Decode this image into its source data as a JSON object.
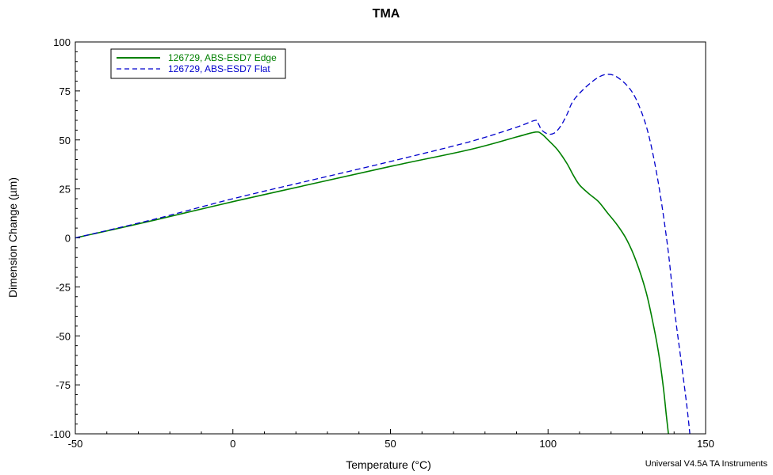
{
  "chart_data": {
    "type": "line",
    "title": "TMA",
    "xlabel": "Temperature (°C)",
    "ylabel": "Dimension Change (µm)",
    "xlim": [
      -50,
      150
    ],
    "ylim": [
      -100,
      100
    ],
    "x_ticks": [
      -50,
      0,
      50,
      100,
      150
    ],
    "y_ticks": [
      100,
      75,
      50,
      25,
      0,
      -25,
      -50,
      -75,
      -100
    ],
    "x_tick_labels": [
      "-50",
      "0",
      "50",
      "100",
      "150"
    ],
    "y_tick_labels": [
      "100",
      "75",
      "50",
      "25",
      "0",
      "-25",
      "-50",
      "-75",
      "-100"
    ],
    "grid": false,
    "legend_position": "top-left",
    "series": [
      {
        "name": "126729, ABS-ESD7 Edge",
        "color": "#008000",
        "style": "solid",
        "points": [
          [
            -50,
            0
          ],
          [
            -25,
            9
          ],
          [
            0,
            18.5
          ],
          [
            25,
            27.5
          ],
          [
            50,
            36.5
          ],
          [
            75,
            45
          ],
          [
            90,
            51.5
          ],
          [
            96,
            54
          ],
          [
            98,
            53
          ],
          [
            100,
            50
          ],
          [
            103,
            45
          ],
          [
            106,
            38
          ],
          [
            108,
            32
          ],
          [
            110,
            27
          ],
          [
            113,
            22.5
          ],
          [
            116,
            18.5
          ],
          [
            119,
            12.5
          ],
          [
            122,
            6.5
          ],
          [
            125,
            -1
          ],
          [
            128,
            -12
          ],
          [
            131,
            -27
          ],
          [
            133,
            -41
          ],
          [
            135,
            -58
          ],
          [
            136.5,
            -75
          ],
          [
            137.5,
            -90
          ],
          [
            138.2,
            -100
          ]
        ]
      },
      {
        "name": "126729, ABS-ESD7 Flat",
        "color": "#0000CC",
        "style": "dashed",
        "points": [
          [
            -50,
            0
          ],
          [
            -25,
            9.5
          ],
          [
            0,
            20
          ],
          [
            25,
            29.5
          ],
          [
            50,
            39
          ],
          [
            75,
            49
          ],
          [
            90,
            56.5
          ],
          [
            96,
            60
          ],
          [
            97,
            58
          ],
          [
            98,
            55
          ],
          [
            100,
            53
          ],
          [
            102,
            53.5
          ],
          [
            104,
            57
          ],
          [
            106,
            63
          ],
          [
            108,
            70
          ],
          [
            112,
            77
          ],
          [
            116,
            82
          ],
          [
            119,
            83.5
          ],
          [
            122,
            82
          ],
          [
            126,
            76
          ],
          [
            129,
            67
          ],
          [
            132,
            52
          ],
          [
            135,
            28
          ],
          [
            138,
            -5
          ],
          [
            140,
            -35
          ],
          [
            142,
            -60
          ],
          [
            144,
            -85
          ],
          [
            145,
            -100
          ]
        ]
      }
    ]
  },
  "footer": "Universal V4.5A TA Instruments"
}
